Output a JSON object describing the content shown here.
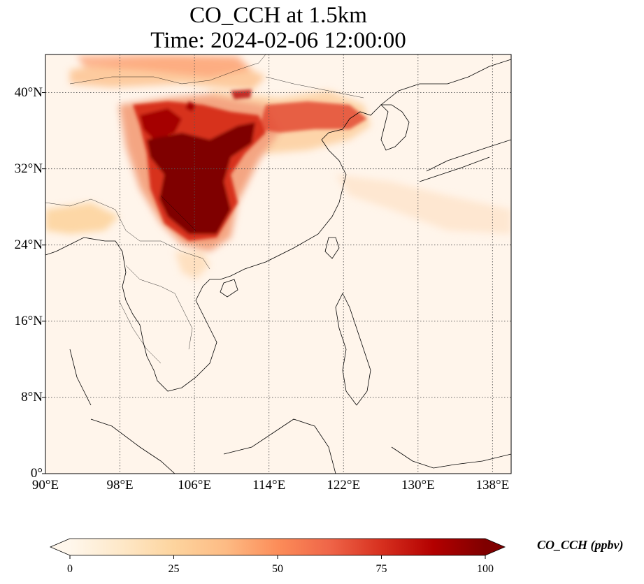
{
  "title_line1": "CO_CCH at 1.5km",
  "title_line2": "Time: 2024-02-06 12:00:00",
  "map": {
    "projection": "PlateCarree",
    "lon_range": [
      90,
      140
    ],
    "lat_range": [
      0,
      44
    ],
    "x_ticks": [
      {
        "lon": 90,
        "label": "90°E"
      },
      {
        "lon": 98,
        "label": "98°E"
      },
      {
        "lon": 106,
        "label": "106°E"
      },
      {
        "lon": 114,
        "label": "114°E"
      },
      {
        "lon": 122,
        "label": "122°E"
      },
      {
        "lon": 130,
        "label": "130°E"
      },
      {
        "lon": 138,
        "label": "138°E"
      }
    ],
    "y_ticks": [
      {
        "lat": 0,
        "label": "0°"
      },
      {
        "lat": 8,
        "label": "8°N"
      },
      {
        "lat": 16,
        "label": "16°N"
      },
      {
        "lat": 24,
        "label": "24°N"
      },
      {
        "lat": 32,
        "label": "32°N"
      },
      {
        "lat": 40,
        "label": "40°N"
      }
    ],
    "gridlines": "dotted",
    "colormap": "OrRd",
    "background_color": "#fff5eb"
  },
  "colorbar": {
    "label": "CO_CCH (ppbv)",
    "min": 0,
    "max": 100,
    "extend": "both",
    "ticks": [
      "0",
      "25",
      "50",
      "75",
      "100"
    ],
    "colors": [
      "#fff7ec",
      "#fee8c8",
      "#fdd49e",
      "#fdbb84",
      "#fc8d59",
      "#ef6548",
      "#d7301f",
      "#b30000",
      "#7f0000"
    ]
  }
}
